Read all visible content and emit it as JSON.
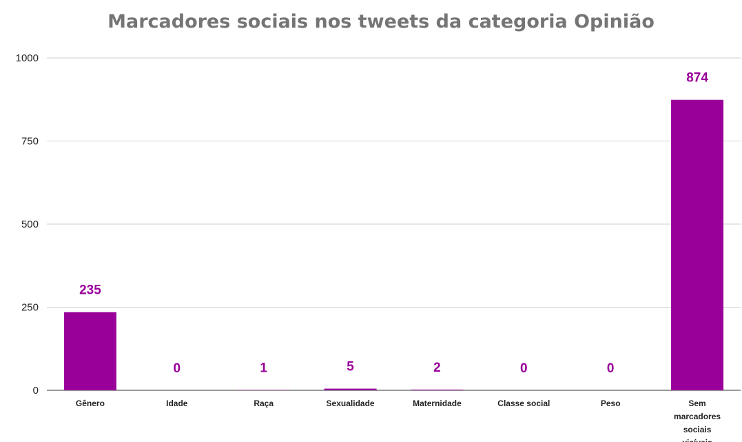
{
  "chart_data": {
    "type": "bar",
    "title": "Marcadores sociais nos tweets da categoria Opinião",
    "xlabel": "",
    "ylabel": "",
    "categories": [
      "Gênero",
      "Idade",
      "Raça",
      "Sexualidade",
      "Maternidade",
      "Classe social",
      "Peso",
      "Sem marcadores sociais visíveis"
    ],
    "values": [
      235,
      0,
      1,
      5,
      2,
      0,
      0,
      874
    ],
    "data_labels": [
      "235",
      "0",
      "1",
      "5",
      "2",
      "0",
      "0",
      "874"
    ],
    "ylim": [
      0,
      1000
    ],
    "yticks": [
      0,
      250,
      500,
      750,
      1000
    ],
    "ytick_labels": [
      "0",
      "250",
      "500",
      "750",
      "1000"
    ],
    "grid": true,
    "legend": "none",
    "colors": {
      "bar": "#990099",
      "label": "#990099",
      "title": "#757575"
    }
  }
}
